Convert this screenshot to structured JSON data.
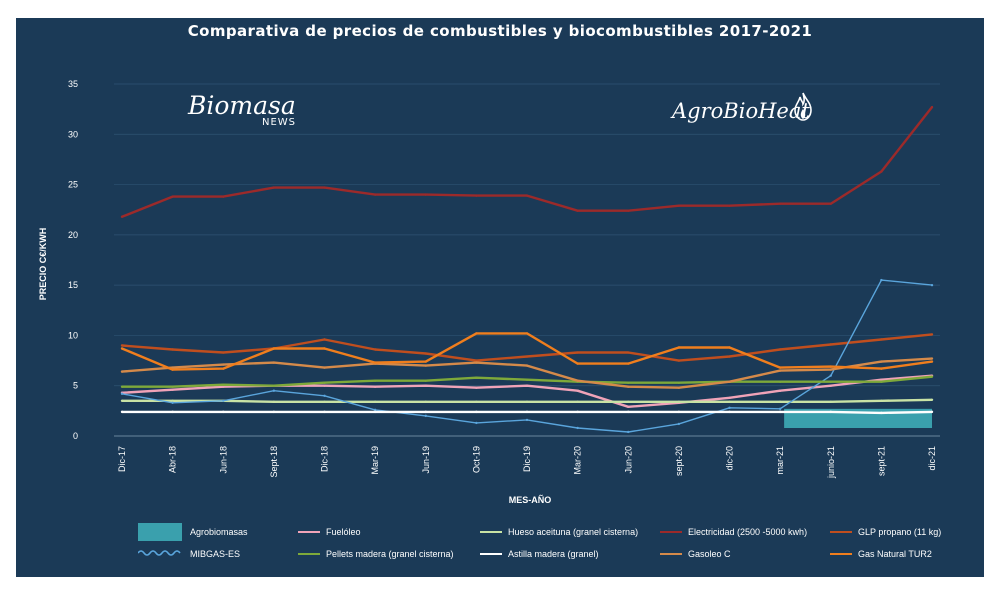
{
  "chart_data": {
    "type": "line",
    "title": "Comparativa de precios de combustibles y biocombustibles  2017-2021",
    "xlabel": "MES-AÑO",
    "ylabel": "PRECIO C€/KWH",
    "ylim": [
      0,
      35
    ],
    "yticks": [
      "0",
      "5",
      "10",
      "15",
      "20",
      "25",
      "30",
      "35"
    ],
    "grid": true,
    "legend_position": "bottom",
    "background": "#1b3a57",
    "categories": [
      "Dic-17",
      "Abr-18",
      "Jun-18",
      "Sept-18",
      "Dic-18",
      "Mar-19",
      "Jun-19",
      "Oct-19",
      "Dic-19",
      "Mar-20",
      "Jun-20",
      "sept-20",
      "dic-20",
      "mar-21",
      "junio-21",
      "sept-21",
      "dic-21"
    ],
    "series": [
      {
        "name": "Agrobiomasas",
        "type": "area",
        "color": "#3aa0ad",
        "values": [
          null,
          null,
          null,
          null,
          null,
          null,
          null,
          null,
          null,
          null,
          null,
          null,
          null,
          2.7,
          2.7,
          2.7,
          2.7
        ]
      },
      {
        "name": "Fuelóleo",
        "color": "#f0a3b8",
        "values": [
          4.3,
          4.6,
          4.9,
          5.0,
          5.0,
          4.9,
          5.0,
          4.8,
          5.0,
          4.5,
          2.9,
          3.3,
          3.8,
          4.5,
          5.0,
          5.6,
          6.0
        ]
      },
      {
        "name": "Hueso aceituna (granel cisterna)",
        "color": "#c9e3a5",
        "values": [
          3.5,
          3.5,
          3.5,
          3.4,
          3.4,
          3.4,
          3.4,
          3.4,
          3.4,
          3.4,
          3.4,
          3.4,
          3.4,
          3.4,
          3.4,
          3.5,
          3.6
        ]
      },
      {
        "name": "Electricidad (2500 -5000 kwh)",
        "color": "#9c2a2a",
        "values": [
          21.8,
          23.8,
          23.8,
          24.7,
          24.7,
          24.0,
          24.0,
          23.9,
          23.9,
          22.4,
          22.4,
          22.9,
          22.9,
          23.1,
          23.1,
          26.3,
          32.7
        ]
      },
      {
        "name": "GLP propano (11 kg)",
        "color": "#c04e1e",
        "values": [
          9.0,
          8.6,
          8.3,
          8.7,
          9.6,
          8.6,
          8.2,
          7.5,
          7.9,
          8.3,
          8.3,
          7.5,
          7.9,
          8.6,
          9.1,
          9.6,
          10.1
        ]
      },
      {
        "name": "MIBGAS-ES",
        "color": "#5aa5dc",
        "values": [
          4.2,
          3.3,
          3.5,
          4.5,
          4.0,
          2.6,
          2.0,
          1.3,
          1.6,
          0.8,
          0.4,
          1.2,
          2.8,
          2.7,
          6.0,
          15.5,
          15.0
        ]
      },
      {
        "name": "Pellets madera (granel cisterna)",
        "color": "#7ea93a",
        "values": [
          4.9,
          4.9,
          5.1,
          5.0,
          5.3,
          5.5,
          5.5,
          5.8,
          5.6,
          5.4,
          5.3,
          5.3,
          5.4,
          5.4,
          5.4,
          5.4,
          5.9
        ]
      },
      {
        "name": "Astilla madera (granel)",
        "color": "#ffffff",
        "values": [
          2.4,
          2.4,
          2.4,
          2.4,
          2.4,
          2.4,
          2.4,
          2.4,
          2.4,
          2.4,
          2.4,
          2.4,
          2.4,
          2.4,
          2.4,
          2.3,
          2.4
        ]
      },
      {
        "name": "Gasoleo C",
        "color": "#d58a4a",
        "values": [
          6.4,
          6.8,
          7.1,
          7.3,
          6.8,
          7.2,
          7.0,
          7.3,
          7.0,
          5.5,
          4.9,
          4.8,
          5.4,
          6.5,
          6.6,
          7.4,
          7.7
        ]
      },
      {
        "name": "Gas Natural TUR2",
        "color": "#f07e1d",
        "values": [
          8.7,
          6.6,
          6.7,
          8.7,
          8.7,
          7.3,
          7.4,
          10.2,
          10.2,
          7.2,
          7.2,
          8.8,
          8.8,
          6.8,
          6.9,
          6.7,
          7.4
        ]
      }
    ]
  },
  "brand": {
    "left_logo": "Biomasa",
    "left_logo_sub": "NEWS",
    "right_logo": "AgroBioHeat",
    "right_logo_icon": "flame-icon"
  },
  "legend": [
    {
      "label": "Agrobiomasas",
      "style": "block",
      "color": "#3aa0ad"
    },
    {
      "label": "Fuelóleo",
      "style": "line",
      "color": "#f0a3b8"
    },
    {
      "label": "Hueso aceituna (granel cisterna)",
      "style": "line",
      "color": "#c9e3a5"
    },
    {
      "label": "Electricidad (2500 -5000 kwh)",
      "style": "line",
      "color": "#9c2a2a"
    },
    {
      "label": "GLP propano (11 kg)",
      "style": "line",
      "color": "#c04e1e"
    },
    {
      "label": "MIBGAS-ES",
      "style": "wave",
      "color": "#5aa5dc"
    },
    {
      "label": "Pellets madera (granel cisterna)",
      "style": "line",
      "color": "#7ea93a"
    },
    {
      "label": "Astilla madera (granel)",
      "style": "line",
      "color": "#ffffff"
    },
    {
      "label": "Gasoleo C",
      "style": "line",
      "color": "#d58a4a"
    },
    {
      "label": "Gas Natural TUR2",
      "style": "line",
      "color": "#f07e1d"
    }
  ]
}
